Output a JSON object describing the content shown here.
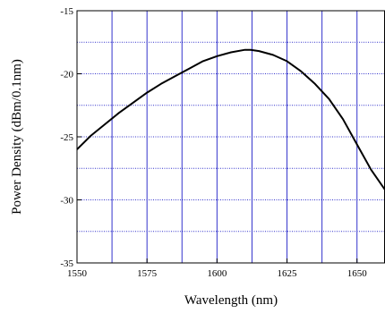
{
  "chart_data": {
    "type": "line",
    "title": "",
    "xlabel": "Wavelength (nm)",
    "ylabel": "Power Density (dBm/0.1nm)",
    "xlim": [
      1550,
      1660
    ],
    "ylim": [
      -35,
      -15
    ],
    "x_ticks": [
      1550,
      1575,
      1600,
      1625,
      1650
    ],
    "y_ticks": [
      -35,
      -30,
      -25,
      -20,
      -15
    ],
    "x_ticks_labels": [
      "1550",
      "1575",
      "1600",
      "1625",
      "1650"
    ],
    "y_ticks_labels": [
      "-35",
      "-30",
      "-25",
      "-20",
      "-15"
    ],
    "x_gridlines": [
      1562.5,
      1587.5,
      1612.5,
      1637.5
    ],
    "y_gridlines": [
      -32.5,
      -30,
      -27.5,
      -25,
      -22.5,
      -20,
      -17.5
    ],
    "grid": true,
    "colors": {
      "grid": "#3333cc",
      "line": "#000000"
    },
    "series": [
      {
        "name": "",
        "x": [
          1550,
          1555,
          1560,
          1565,
          1570,
          1575,
          1580,
          1585,
          1590,
          1595,
          1600,
          1605,
          1610,
          1612,
          1615,
          1620,
          1625,
          1630,
          1635,
          1640,
          1645,
          1650,
          1655,
          1660
        ],
        "y": [
          -26.0,
          -24.9,
          -24.0,
          -23.1,
          -22.3,
          -21.5,
          -20.8,
          -20.2,
          -19.6,
          -19.0,
          -18.6,
          -18.3,
          -18.1,
          -18.1,
          -18.2,
          -18.5,
          -19.0,
          -19.8,
          -20.8,
          -22.0,
          -23.6,
          -25.6,
          -27.6,
          -29.2
        ]
      }
    ]
  }
}
